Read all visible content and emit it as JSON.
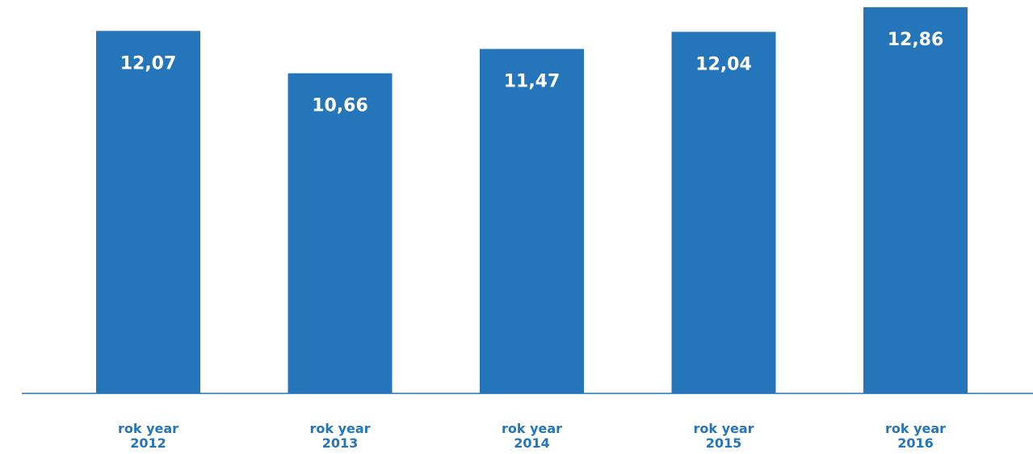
{
  "chart_data": {
    "type": "bar",
    "categories": [
      [
        "rok year",
        "2012"
      ],
      [
        "rok year",
        "2013"
      ],
      [
        "rok year",
        "2014"
      ],
      [
        "rok year",
        "2015"
      ],
      [
        "rok year",
        "2016"
      ]
    ],
    "values": [
      12.07,
      10.66,
      11.47,
      12.04,
      12.86
    ],
    "data_labels": [
      "12,07",
      "10,66",
      "11,47",
      "12,04",
      "12,86"
    ],
    "title": "",
    "xlabel": "",
    "ylabel": "",
    "ylim": [
      0,
      13.1
    ],
    "grid": false,
    "colors": {
      "bar": "#2575bb",
      "axis": "#2575bb",
      "category_text": "#2575bb",
      "value_text": "#ffffff"
    }
  }
}
